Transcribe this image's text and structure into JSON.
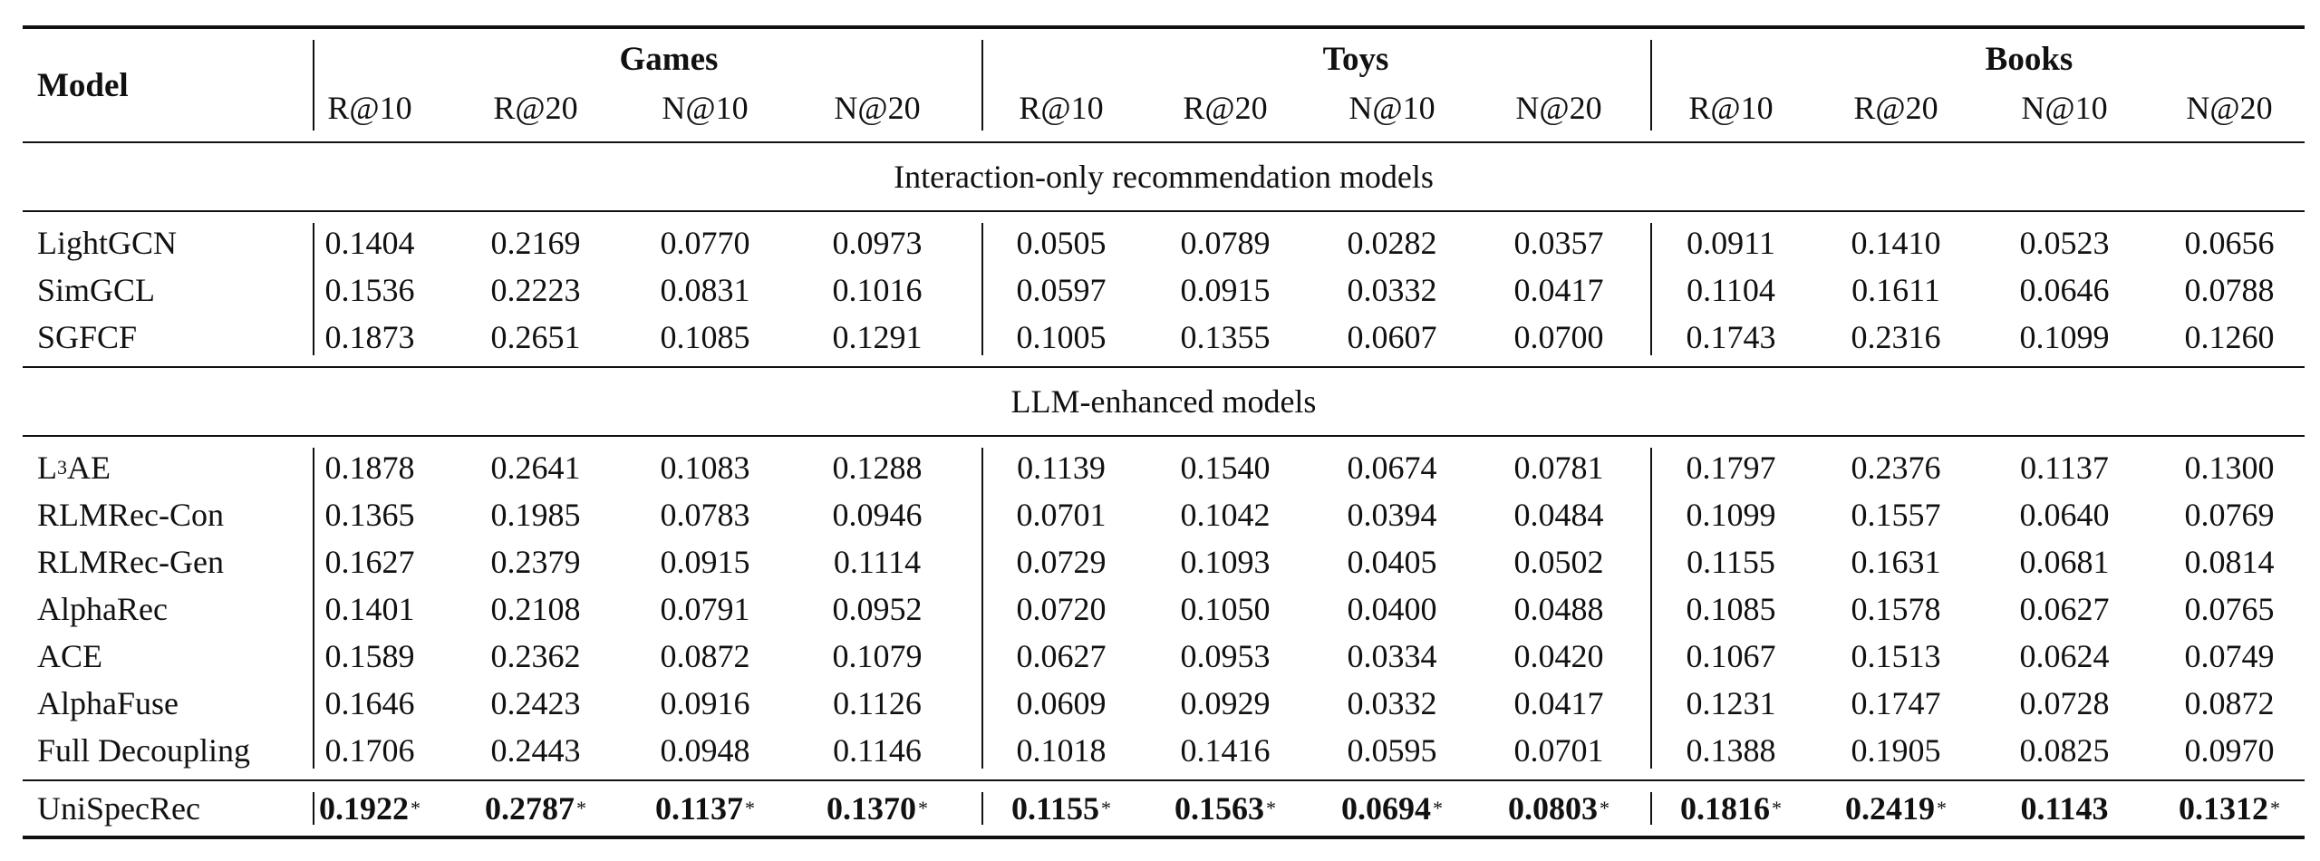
{
  "header": {
    "model_label": "Model",
    "groups": [
      "Games",
      "Toys",
      "Books"
    ],
    "metrics": [
      "R@10",
      "R@20",
      "N@10",
      "N@20"
    ]
  },
  "sections": [
    {
      "title": "Interaction-only recommendation models",
      "rows": [
        {
          "model": "LightGCN",
          "values": [
            "0.1404",
            "0.2169",
            "0.0770",
            "0.0973",
            "0.0505",
            "0.0789",
            "0.0282",
            "0.0357",
            "0.0911",
            "0.1410",
            "0.0523",
            "0.0656"
          ]
        },
        {
          "model": "SimGCL",
          "values": [
            "0.1536",
            "0.2223",
            "0.0831",
            "0.1016",
            "0.0597",
            "0.0915",
            "0.0332",
            "0.0417",
            "0.1104",
            "0.1611",
            "0.0646",
            "0.0788"
          ]
        },
        {
          "model": "SGFCF",
          "values": [
            "0.1873",
            "0.2651",
            "0.1085",
            "0.1291",
            "0.1005",
            "0.1355",
            "0.0607",
            "0.0700",
            "0.1743",
            "0.2316",
            "0.1099",
            "0.1260"
          ]
        }
      ]
    },
    {
      "title": "LLM-enhanced models",
      "rows": [
        {
          "model": "L",
          "model_sup": "3",
          "model_rest": "AE",
          "values": [
            "0.1878",
            "0.2641",
            "0.1083",
            "0.1288",
            "0.1139",
            "0.1540",
            "0.0674",
            "0.0781",
            "0.1797",
            "0.2376",
            "0.1137",
            "0.1300"
          ]
        },
        {
          "model": "RLMRec-Con",
          "values": [
            "0.1365",
            "0.1985",
            "0.0783",
            "0.0946",
            "0.0701",
            "0.1042",
            "0.0394",
            "0.0484",
            "0.1099",
            "0.1557",
            "0.0640",
            "0.0769"
          ]
        },
        {
          "model": "RLMRec-Gen",
          "values": [
            "0.1627",
            "0.2379",
            "0.0915",
            "0.1114",
            "0.0729",
            "0.1093",
            "0.0405",
            "0.0502",
            "0.1155",
            "0.1631",
            "0.0681",
            "0.0814"
          ]
        },
        {
          "model": "AlphaRec",
          "values": [
            "0.1401",
            "0.2108",
            "0.0791",
            "0.0952",
            "0.0720",
            "0.1050",
            "0.0400",
            "0.0488",
            "0.1085",
            "0.1578",
            "0.0627",
            "0.0765"
          ]
        },
        {
          "model": "ACE",
          "values": [
            "0.1589",
            "0.2362",
            "0.0872",
            "0.1079",
            "0.0627",
            "0.0953",
            "0.0334",
            "0.0420",
            "0.1067",
            "0.1513",
            "0.0624",
            "0.0749"
          ]
        },
        {
          "model": "AlphaFuse",
          "values": [
            "0.1646",
            "0.2423",
            "0.0916",
            "0.1126",
            "0.0609",
            "0.0929",
            "0.0332",
            "0.0417",
            "0.1231",
            "0.1747",
            "0.0728",
            "0.0872"
          ]
        },
        {
          "model": "Full Decoupling",
          "values": [
            "0.1706",
            "0.2443",
            "0.0948",
            "0.1146",
            "0.1018",
            "0.1416",
            "0.0595",
            "0.0701",
            "0.1388",
            "0.1905",
            "0.0825",
            "0.0970"
          ]
        }
      ]
    }
  ],
  "final_row": {
    "model": "UniSpecRec",
    "values": [
      "0.1922",
      "0.2787",
      "0.1137",
      "0.1370",
      "0.1155",
      "0.1563",
      "0.0694",
      "0.0803",
      "0.1816",
      "0.2419",
      "0.1143",
      "0.1312"
    ],
    "stars": [
      true,
      true,
      true,
      true,
      true,
      true,
      true,
      true,
      true,
      true,
      false,
      true
    ],
    "star_symbol": "*"
  }
}
